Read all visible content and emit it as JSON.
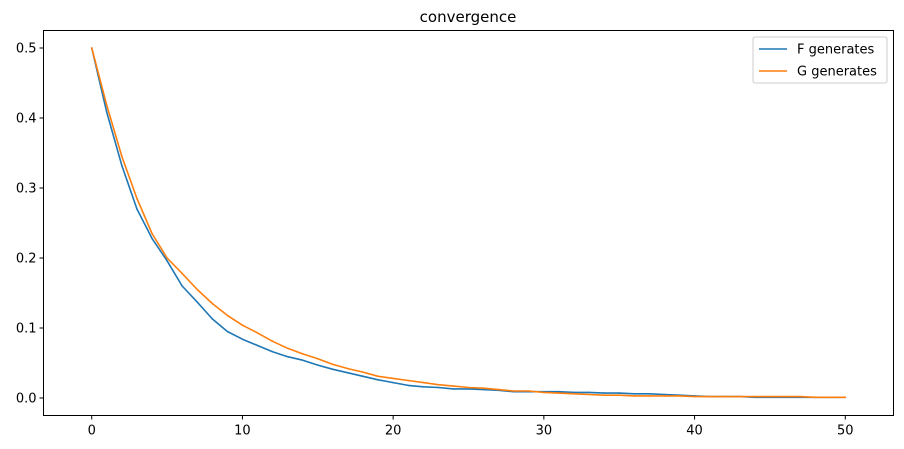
{
  "chart_data": {
    "type": "line",
    "title": "convergence",
    "xlabel": "",
    "ylabel": "",
    "xlim": [
      -3.2,
      53.2
    ],
    "ylim": [
      -0.025,
      0.525
    ],
    "xticks": [
      0,
      10,
      20,
      30,
      40,
      50
    ],
    "xtick_labels": [
      "0",
      "10",
      "20",
      "30",
      "40",
      "50"
    ],
    "yticks": [
      0.0,
      0.1,
      0.2,
      0.3,
      0.4,
      0.5
    ],
    "ytick_labels": [
      "0.0",
      "0.1",
      "0.2",
      "0.3",
      "0.4",
      "0.5"
    ],
    "grid": false,
    "legend_position": "upper right",
    "x": [
      0,
      1,
      2,
      3,
      4,
      5,
      6,
      7,
      8,
      9,
      10,
      11,
      12,
      13,
      14,
      15,
      16,
      17,
      18,
      19,
      20,
      21,
      22,
      23,
      24,
      25,
      26,
      27,
      28,
      29,
      30,
      31,
      32,
      33,
      34,
      35,
      36,
      37,
      38,
      39,
      40,
      41,
      42,
      43,
      44,
      45,
      46,
      47,
      48,
      49,
      50
    ],
    "series": [
      {
        "name": "F generates",
        "color": "#1f77b4",
        "values": [
          0.5,
          0.408,
          0.332,
          0.27,
          0.228,
          0.196,
          0.16,
          0.137,
          0.113,
          0.095,
          0.084,
          0.075,
          0.066,
          0.059,
          0.054,
          0.047,
          0.041,
          0.036,
          0.031,
          0.026,
          0.022,
          0.018,
          0.016,
          0.015,
          0.013,
          0.013,
          0.012,
          0.011,
          0.009,
          0.009,
          0.009,
          0.009,
          0.008,
          0.008,
          0.007,
          0.007,
          0.006,
          0.006,
          0.005,
          0.004,
          0.003,
          0.002,
          0.002,
          0.002,
          0.001,
          0.001,
          0.001,
          0.001,
          0.001,
          0.001,
          0.001
        ]
      },
      {
        "name": "G generates",
        "color": "#ff7f0e",
        "values": [
          0.5,
          0.418,
          0.345,
          0.285,
          0.235,
          0.2,
          0.178,
          0.155,
          0.135,
          0.118,
          0.104,
          0.093,
          0.081,
          0.071,
          0.063,
          0.056,
          0.048,
          0.042,
          0.037,
          0.031,
          0.028,
          0.025,
          0.022,
          0.019,
          0.017,
          0.015,
          0.014,
          0.012,
          0.01,
          0.01,
          0.008,
          0.007,
          0.006,
          0.005,
          0.004,
          0.004,
          0.003,
          0.003,
          0.003,
          0.003,
          0.002,
          0.002,
          0.002,
          0.002,
          0.002,
          0.002,
          0.002,
          0.002,
          0.001,
          0.001,
          0.001
        ]
      }
    ]
  }
}
